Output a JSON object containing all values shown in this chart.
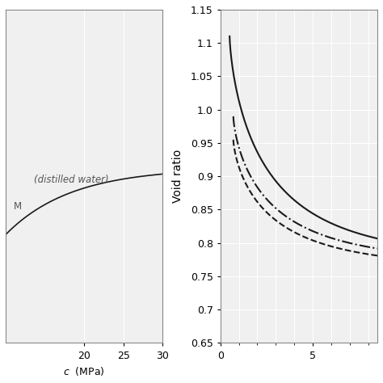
{
  "right_panel": {
    "ylabel": "Void ratio",
    "xlabel_partial": "5",
    "ylim": [
      0.65,
      1.15
    ],
    "xlim": [
      0,
      8.5
    ],
    "yticks": [
      0.65,
      0.7,
      0.75,
      0.8,
      0.85,
      0.9,
      0.95,
      1.0,
      1.05,
      1.1,
      1.15
    ],
    "xticks": [
      0,
      5
    ],
    "bg_color": "#f0f0f0",
    "line_color": "#1a1a1a",
    "curve1_start_x": 0.5,
    "curve1_start_y": 1.11,
    "curve2_start_x": 0.7,
    "curve2_start_y": 0.99,
    "curve3_start_x": 0.7,
    "curve3_start_y": 0.955
  },
  "left_panel": {
    "xlim": [
      10,
      30
    ],
    "xticks": [
      20,
      25,
      30
    ],
    "xlabel": "c  (MPa)",
    "text1": "(distilled water)",
    "text2": "M",
    "bg_color": "#f0f0f0",
    "line_color": "#1a1a1a"
  }
}
